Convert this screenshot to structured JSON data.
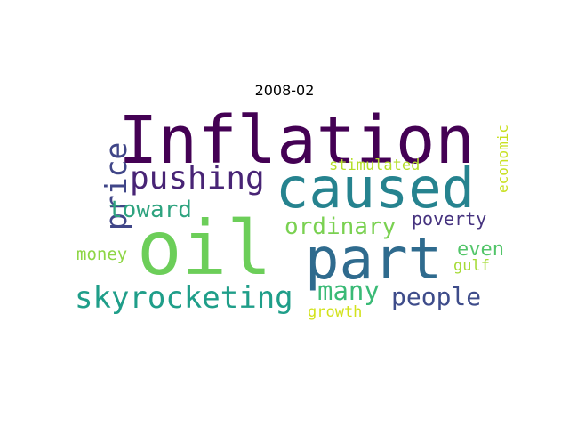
{
  "title": "2008-02",
  "words": [
    {
      "text": "Inflation",
      "color": "#440154"
    },
    {
      "text": "caused",
      "color": "#26838f"
    },
    {
      "text": "oil",
      "color": "#6cce59"
    },
    {
      "text": "part",
      "color": "#2f6b8e"
    },
    {
      "text": "pushing",
      "color": "#482475"
    },
    {
      "text": "price",
      "color": "#404688"
    },
    {
      "text": "toward",
      "color": "#2ea37f"
    },
    {
      "text": "ordinary",
      "color": "#7ad151"
    },
    {
      "text": "poverty",
      "color": "#46337f"
    },
    {
      "text": "skyrocketing",
      "color": "#1f9e89"
    },
    {
      "text": "many",
      "color": "#3aba76"
    },
    {
      "text": "people",
      "color": "#3e4c8a"
    },
    {
      "text": "money",
      "color": "#8ed645"
    },
    {
      "text": "even",
      "color": "#52c569"
    },
    {
      "text": "gulf",
      "color": "#a5db36"
    },
    {
      "text": "growth",
      "color": "#d2e21b"
    },
    {
      "text": "stimulated",
      "color": "#b5de2b"
    },
    {
      "text": "economic",
      "color": "#c8e020"
    }
  ]
}
